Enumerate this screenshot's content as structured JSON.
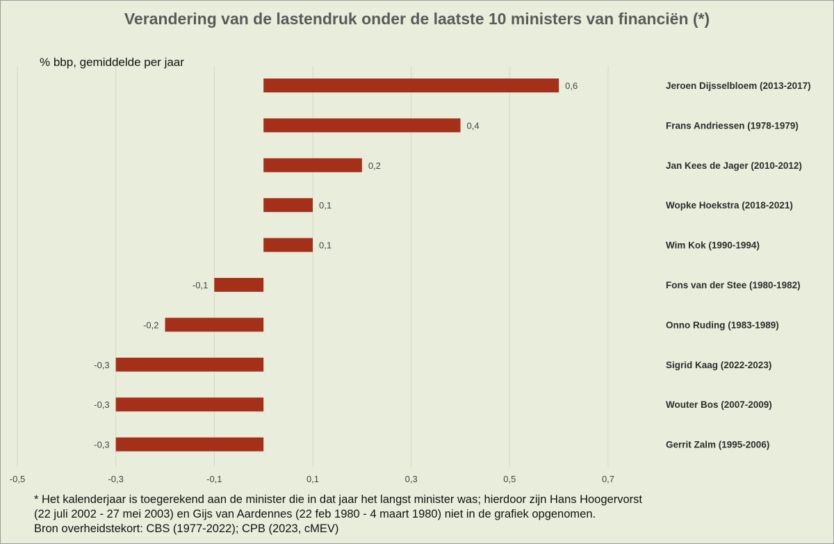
{
  "chart_data": {
    "type": "bar",
    "orientation": "horizontal",
    "title": "Verandering van de lastendruk onder de laatste 10 ministers van financiën (*)",
    "units_label": "% bbp, gemiddelde per jaar",
    "categories": [
      "Jeroen Dijsselbloem (2013-2017)",
      "Frans Andriessen (1978-1979)",
      "Jan Kees de Jager (2010-2012)",
      "Wopke Hoekstra (2018-2021)",
      "Wim Kok (1990-1994)",
      "Fons van der Stee (1980-1982)",
      "Onno Ruding (1983-1989)",
      "Sigrid Kaag (2022-2023)",
      "Wouter Bos (2007-2009)",
      "Gerrit Zalm (1995-2006)"
    ],
    "values": [
      0.6,
      0.4,
      0.2,
      0.1,
      0.1,
      -0.1,
      -0.2,
      -0.3,
      -0.3,
      -0.3
    ],
    "value_labels": [
      "0,6",
      "0,4",
      "0,2",
      "0,1",
      "0,1",
      "-0,1",
      "-0,2",
      "-0,3",
      "-0,3",
      "-0,3"
    ],
    "xlim": [
      -0.5,
      0.7
    ],
    "x_ticks": [
      -0.5,
      -0.3,
      -0.1,
      0.1,
      0.3,
      0.5,
      0.7
    ],
    "x_tick_labels": [
      "-0,5",
      "-0,3",
      "-0,1",
      "0,1",
      "0,3",
      "0,5",
      "0,7"
    ],
    "grid": true,
    "bar_color": "#a4301a",
    "background_color": "#e9eedc"
  },
  "footnote": {
    "lines": [
      "* Het kalenderjaar is toegerekend aan de minister die in dat jaar het langst minister was; hierdoor zijn Hans Hoogervorst",
      "(22 juli 2002 - 27 mei 2003) en Gijs van Aardennes (22 feb 1980 - 4 maart 1980) niet in de grafiek opgenomen.",
      "Bron overheidstekort: CBS (1977-2022); CPB (2023, cMEV)"
    ]
  }
}
